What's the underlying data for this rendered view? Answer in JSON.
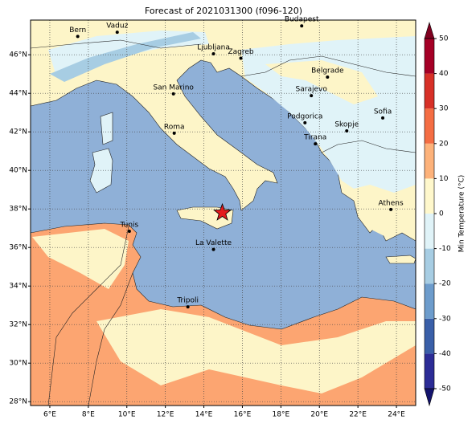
{
  "chart_data": {
    "type": "map",
    "title": "Forecast of 2021031300 (f096-120)",
    "xlim": [
      5,
      25
    ],
    "ylim": [
      27.8,
      47.8
    ],
    "xticks": [
      {
        "value": 6,
        "label": "6°E"
      },
      {
        "value": 8,
        "label": "8°E"
      },
      {
        "value": 10,
        "label": "10°E"
      },
      {
        "value": 12,
        "label": "12°E"
      },
      {
        "value": 14,
        "label": "14°E"
      },
      {
        "value": 16,
        "label": "16°E"
      },
      {
        "value": 18,
        "label": "18°E"
      },
      {
        "value": 20,
        "label": "20°E"
      },
      {
        "value": 22,
        "label": "22°E"
      },
      {
        "value": 24,
        "label": "24°E"
      }
    ],
    "yticks": [
      {
        "value": 28,
        "label": "28°N"
      },
      {
        "value": 30,
        "label": "30°N"
      },
      {
        "value": 32,
        "label": "32°N"
      },
      {
        "value": 34,
        "label": "34°N"
      },
      {
        "value": 36,
        "label": "36°N"
      },
      {
        "value": 38,
        "label": "38°N"
      },
      {
        "value": 40,
        "label": "40°N"
      },
      {
        "value": 42,
        "label": "42°N"
      },
      {
        "value": 44,
        "label": "44°N"
      },
      {
        "value": 46,
        "label": "46°N"
      }
    ],
    "grid": true,
    "cities": [
      {
        "name": "Bern",
        "lon": 7.45,
        "lat": 46.95
      },
      {
        "name": "Vaduz",
        "lon": 9.5,
        "lat": 47.17
      },
      {
        "name": "Budapest",
        "lon": 19.08,
        "lat": 47.5
      },
      {
        "name": "Ljubljana",
        "lon": 14.5,
        "lat": 46.05
      },
      {
        "name": "Zagreb",
        "lon": 15.92,
        "lat": 45.82
      },
      {
        "name": "Belgrade",
        "lon": 20.42,
        "lat": 44.84
      },
      {
        "name": "San Marino",
        "lon": 12.42,
        "lat": 43.97
      },
      {
        "name": "Sarajevo",
        "lon": 19.58,
        "lat": 43.88
      },
      {
        "name": "Sofia",
        "lon": 23.29,
        "lat": 42.72
      },
      {
        "name": "Roma",
        "lon": 12.46,
        "lat": 41.93
      },
      {
        "name": "Podgorica",
        "lon": 19.25,
        "lat": 42.47
      },
      {
        "name": "Skopje",
        "lon": 21.42,
        "lat": 42.05
      },
      {
        "name": "Tirana",
        "lon": 19.79,
        "lat": 41.38
      },
      {
        "name": "Athens",
        "lon": 23.71,
        "lat": 37.97
      },
      {
        "name": "Tunis",
        "lon": 10.13,
        "lat": 36.84
      },
      {
        "name": "La Valette",
        "lon": 14.5,
        "lat": 35.9
      },
      {
        "name": "Tripoli",
        "lon": 13.17,
        "lat": 32.92
      }
    ],
    "marker": {
      "lon": 14.96,
      "lat": 37.8,
      "color": "#e41a1c"
    },
    "colorbar": {
      "label": "Min Temperature (°C)",
      "ticks": [
        -50,
        -40,
        -30,
        -20,
        -10,
        0,
        10,
        20,
        30,
        40,
        50
      ],
      "colors": [
        "#2c2c96",
        "#3a5fa8",
        "#6d9ccc",
        "#a7cde3",
        "#e0f3f8",
        "#fff8cc",
        "#fdb27a",
        "#f46d43",
        "#d73027",
        "#a50026"
      ],
      "under_color": "#14146e",
      "over_color": "#800020"
    }
  }
}
